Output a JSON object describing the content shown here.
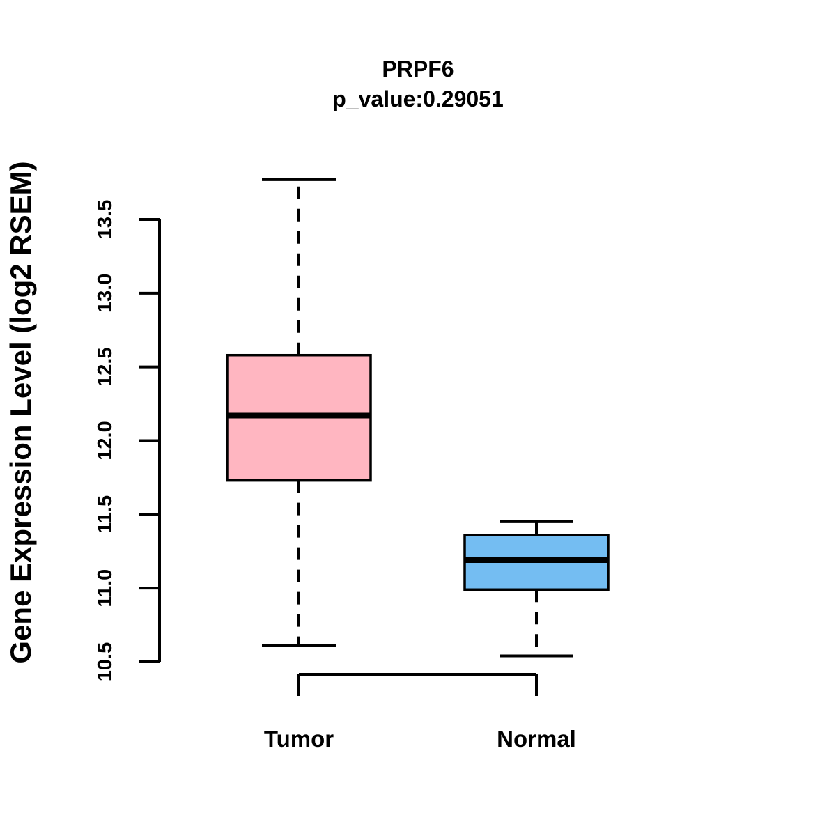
{
  "figure": {
    "background": "#ffffff",
    "foreground": "#000000"
  },
  "chart_data": {
    "type": "boxplot",
    "title": "PRPF6",
    "subtitle": "p_value:0.29051",
    "ylabel": "Gene Expression Level (log2 RSEM)",
    "xlabel": "",
    "categories": [
      "Tumor",
      "Normal"
    ],
    "series": [
      {
        "name": "Tumor",
        "whisker_low": 10.61,
        "q1": 11.73,
        "median": 12.17,
        "q3": 12.58,
        "whisker_high": 13.77,
        "fill": "#FFB6C1"
      },
      {
        "name": "Normal",
        "whisker_low": 10.54,
        "q1": 10.99,
        "median": 11.19,
        "q3": 11.36,
        "whisker_high": 11.45,
        "fill": "#74BDF2"
      }
    ],
    "yticks": [
      10.5,
      11.0,
      11.5,
      12.0,
      12.5,
      13.0,
      13.5
    ],
    "ytick_labels": [
      "10.5",
      "11.0",
      "11.5",
      "12.0",
      "12.5",
      "13.0",
      "13.5"
    ],
    "ylim": [
      10.5,
      13.5
    ],
    "grid": false,
    "legend": null,
    "box_edge_color": "#000000",
    "whisker_style": "dashed"
  }
}
